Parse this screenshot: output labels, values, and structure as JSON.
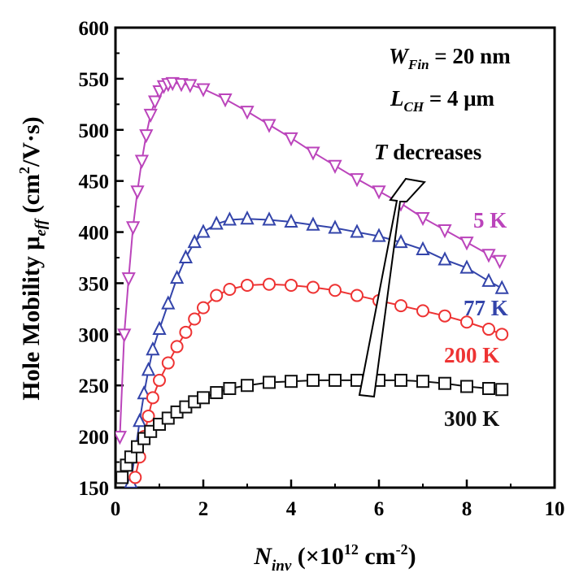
{
  "chart_data": {
    "type": "scatter",
    "xlabel": {
      "main": "N",
      "sub": "inv",
      "rest": " (×10",
      "sup": "12",
      "unit": " cm",
      "unit_sup": "-2",
      "close": ")"
    },
    "ylabel": {
      "main": "Hole Mobility μ",
      "sub": "eff",
      "rest": " (cm",
      "sup": "2",
      "close": "/V·s)"
    },
    "xlim": [
      0,
      10
    ],
    "ylim": [
      150,
      600
    ],
    "xticks": [
      0,
      2,
      4,
      6,
      8,
      10
    ],
    "yticks": [
      150,
      200,
      250,
      300,
      350,
      400,
      450,
      500,
      550,
      600
    ],
    "grid": false,
    "annotations": {
      "wfin": {
        "main": "W",
        "sub": "Fin",
        "rest": " = 20 nm"
      },
      "lch": {
        "main": "L",
        "sub": "CH",
        "rest": " = 4 μm"
      },
      "trend": {
        "main": "T",
        "rest": " decreases"
      }
    },
    "series": [
      {
        "name": "5 K",
        "color": "#bb44bb",
        "marker": "triangle-down",
        "x": [
          0.1,
          0.2,
          0.3,
          0.4,
          0.5,
          0.6,
          0.7,
          0.8,
          0.9,
          1.0,
          1.1,
          1.2,
          1.3,
          1.5,
          1.7,
          2.0,
          2.5,
          3.0,
          3.5,
          4.0,
          4.5,
          5.0,
          5.5,
          6.0,
          6.5,
          7.0,
          7.5,
          8.0,
          8.5,
          8.75
        ],
        "y": [
          200,
          300,
          355,
          405,
          440,
          470,
          495,
          515,
          528,
          538,
          543,
          545,
          546,
          545,
          544,
          540,
          530,
          518,
          505,
          492,
          478,
          465,
          452,
          440,
          428,
          414,
          402,
          390,
          378,
          372
        ]
      },
      {
        "name": "77 K",
        "color": "#3344aa",
        "marker": "triangle-up",
        "x": [
          0.35,
          0.45,
          0.55,
          0.65,
          0.75,
          0.85,
          1.0,
          1.2,
          1.4,
          1.6,
          1.8,
          2.0,
          2.3,
          2.6,
          3.0,
          3.5,
          4.0,
          4.5,
          5.0,
          5.5,
          6.0,
          6.5,
          7.0,
          7.5,
          8.0,
          8.5,
          8.8
        ],
        "y": [
          155,
          185,
          215,
          242,
          265,
          285,
          305,
          330,
          355,
          375,
          390,
          400,
          408,
          412,
          413,
          412,
          410,
          407,
          404,
          400,
          396,
          390,
          383,
          373,
          365,
          352,
          345
        ]
      },
      {
        "name": "200 K",
        "color": "#ee3333",
        "marker": "circle",
        "x": [
          0.45,
          0.55,
          0.65,
          0.75,
          0.85,
          1.0,
          1.2,
          1.4,
          1.6,
          1.8,
          2.0,
          2.3,
          2.6,
          3.0,
          3.5,
          4.0,
          4.5,
          5.0,
          5.5,
          6.0,
          6.5,
          7.0,
          7.5,
          8.0,
          8.5,
          8.8
        ],
        "y": [
          160,
          180,
          200,
          220,
          238,
          255,
          272,
          288,
          302,
          315,
          326,
          338,
          344,
          348,
          349,
          348,
          346,
          343,
          338,
          333,
          328,
          323,
          318,
          312,
          305,
          300
        ]
      },
      {
        "name": "300 K",
        "color": "#111111",
        "marker": "square",
        "x": [
          0.15,
          0.25,
          0.35,
          0.5,
          0.65,
          0.8,
          1.0,
          1.2,
          1.4,
          1.6,
          1.8,
          2.0,
          2.3,
          2.6,
          3.0,
          3.5,
          4.0,
          4.5,
          5.0,
          5.5,
          6.0,
          6.5,
          7.0,
          7.5,
          8.0,
          8.5,
          8.8
        ],
        "y": [
          160,
          172,
          180,
          190,
          198,
          205,
          212,
          218,
          224,
          229,
          234,
          238,
          243,
          247,
          250,
          253,
          254,
          255,
          255,
          255,
          255,
          255,
          254,
          252,
          249,
          247,
          246
        ]
      }
    ]
  }
}
